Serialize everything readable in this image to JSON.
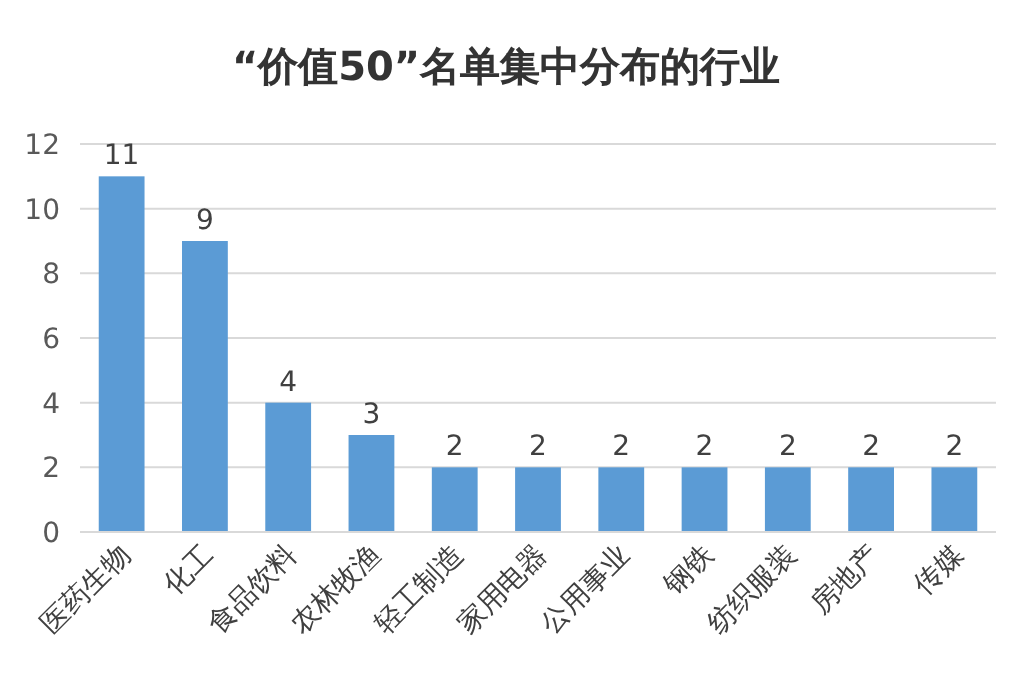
{
  "chart_data": {
    "type": "bar",
    "title": "“价值50”名单集中分布的行业",
    "categories": [
      "医药生物",
      "化工",
      "食品饮料",
      "农林牧渔",
      "轻工制造",
      "家用电器",
      "公用事业",
      "钢铁",
      "纺织服装",
      "房地产",
      "传媒"
    ],
    "values": [
      11,
      9,
      4,
      3,
      2,
      2,
      2,
      2,
      2,
      2,
      2
    ],
    "color": "#5b9bd5",
    "ylim": [
      0,
      12
    ],
    "yticks": [
      0,
      2,
      4,
      6,
      8,
      10,
      12
    ],
    "grid": "y",
    "data_labels": true
  }
}
